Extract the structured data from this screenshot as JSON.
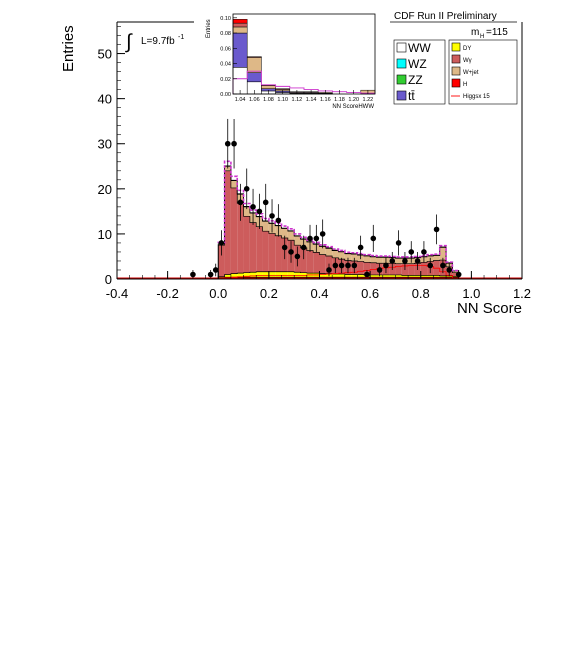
{
  "chart_data": {
    "type": "histogram",
    "xlabel": "NN Score",
    "ylabel": "Entries",
    "xlim": [
      -0.4,
      1.2
    ],
    "ylim": [
      0,
      57
    ],
    "xticks": [
      "-0.4",
      "-0.2",
      "0.0",
      "0.2",
      "0.4",
      "0.6",
      "0.8",
      "1.0",
      "1.2"
    ],
    "yticks": [
      "0",
      "10",
      "20",
      "30",
      "40",
      "50"
    ],
    "luminosity_label": "L=9.7fb",
    "luminosity_exponent": "-1",
    "integral_symbol": "∫",
    "title": "CDF Run II Preliminary",
    "mass_label": "m",
    "mass_subscript": "H",
    "mass_value": "=115",
    "legend": [
      {
        "label": "WW",
        "color": "#ffffff",
        "small": false
      },
      {
        "label": "DY",
        "color": "#ffff00",
        "small": true
      },
      {
        "label": "Wγ",
        "color": "#cd5c5c",
        "small": true
      },
      {
        "label": "WZ",
        "color": "#00ffff",
        "small": false
      },
      {
        "label": "W+jet",
        "color": "#deb887",
        "small": true
      },
      {
        "label": "ZZ",
        "color": "#32cd32",
        "small": false
      },
      {
        "label": "H",
        "color": "#ff0000",
        "small": true
      },
      {
        "label": "tt̄",
        "color": "#6a5acd",
        "small": false
      },
      {
        "label": "Higgsx 15",
        "color": "#ff0000",
        "small": true
      }
    ],
    "bin_edges": [
      0.0,
      0.025,
      0.05,
      0.075,
      0.1,
      0.125,
      0.15,
      0.175,
      0.2,
      0.225,
      0.25,
      0.275,
      0.3,
      0.325,
      0.35,
      0.375,
      0.4,
      0.425,
      0.45,
      0.475,
      0.5,
      0.525,
      0.55,
      0.575,
      0.6,
      0.625,
      0.65,
      0.675,
      0.7,
      0.725,
      0.75,
      0.775,
      0.8,
      0.825,
      0.85,
      0.875,
      0.9,
      0.925,
      0.95
    ],
    "stack": [
      {
        "name": "WW",
        "color": "#ffffff",
        "values": [
          0.3,
          0.4,
          0.4,
          0.4,
          0.4,
          0.4,
          0.4,
          0.4,
          0.4,
          0.4,
          0.4,
          0.4,
          0.4,
          0.4,
          0.4,
          0.4,
          0.4,
          0.4,
          0.4,
          0.4,
          0.4,
          0.4,
          0.4,
          0.4,
          0.4,
          0.4,
          0.4,
          0.4,
          0.4,
          0.4,
          0.4,
          0.4,
          0.4,
          0.4,
          0.4,
          0.4,
          0.4,
          0.4
        ]
      },
      {
        "name": "DY",
        "color": "#ffff00",
        "values": [
          0.2,
          0.6,
          0.8,
          0.9,
          1.0,
          1.1,
          1.2,
          1.2,
          1.2,
          1.2,
          1.2,
          1.2,
          1.1,
          1.0,
          0.9,
          0.9,
          0.8,
          0.8,
          0.7,
          0.7,
          0.6,
          0.6,
          0.6,
          0.5,
          0.5,
          0.5,
          0.5,
          0.5,
          0.5,
          0.4,
          0.4,
          0.4,
          0.4,
          0.4,
          0.4,
          0.3,
          0.3,
          0.2
        ]
      },
      {
        "name": "Wγ",
        "color": "#cd5c5c",
        "values": [
          7.0,
          23.0,
          19.0,
          15.5,
          12.5,
          11.0,
          10.0,
          9.0,
          8.5,
          8.0,
          7.5,
          7.0,
          6.0,
          5.5,
          5.0,
          4.6,
          4.2,
          3.9,
          3.6,
          3.3,
          3.1,
          3.0,
          2.9,
          2.8,
          2.7,
          2.6,
          2.6,
          2.6,
          2.5,
          2.6,
          2.6,
          2.7,
          2.9,
          3.1,
          3.3,
          3.5,
          2.0,
          0.8
        ]
      },
      {
        "name": "W+jet",
        "color": "#deb887",
        "values": [
          0.3,
          1.0,
          1.6,
          2.0,
          2.1,
          2.1,
          2.2,
          2.2,
          2.2,
          2.2,
          2.1,
          2.0,
          2.0,
          1.9,
          1.9,
          1.8,
          1.8,
          1.7,
          1.6,
          1.6,
          1.5,
          1.5,
          1.4,
          1.4,
          1.3,
          1.3,
          1.3,
          1.2,
          1.2,
          1.2,
          1.2,
          1.2,
          1.2,
          1.2,
          1.1,
          2.8,
          0.8,
          0.4
        ]
      },
      {
        "name": "H",
        "color": "#ff0000",
        "values": [
          0.0,
          0.1,
          0.1,
          0.1,
          0.1,
          0.1,
          0.1,
          0.1,
          0.1,
          0.1,
          0.1,
          0.1,
          0.1,
          0.1,
          0.1,
          0.1,
          0.1,
          0.1,
          0.1,
          0.1,
          0.1,
          0.1,
          0.1,
          0.1,
          0.1,
          0.1,
          0.1,
          0.1,
          0.1,
          0.1,
          0.1,
          0.1,
          0.1,
          0.1,
          0.1,
          0.1,
          0.1,
          0.0
        ]
      }
    ],
    "higgs_x15": [
      0.1,
      0.3,
      0.4,
      0.5,
      0.6,
      0.7,
      0.8,
      0.8,
      0.8,
      0.8,
      0.8,
      0.8,
      0.8,
      0.8,
      0.9,
      0.9,
      1.0,
      1.1,
      1.2,
      1.3,
      1.4,
      1.5,
      1.7,
      1.9,
      2.1,
      2.3,
      2.5,
      2.6,
      2.8,
      2.9,
      3.0,
      3.0,
      3.0,
      2.8,
      2.4,
      1.6,
      0.8,
      0.2
    ],
    "data_points": [
      {
        "x": -0.1,
        "y": 1,
        "err": 1.0
      },
      {
        "x": -0.03,
        "y": 1,
        "err": 1.0
      },
      {
        "x": -0.01,
        "y": 2,
        "err": 1.4
      },
      {
        "x": 0.0125,
        "y": 8,
        "err": 2.8
      },
      {
        "x": 0.0375,
        "y": 30,
        "err": 5.5
      },
      {
        "x": 0.0625,
        "y": 30,
        "err": 5.5
      },
      {
        "x": 0.0875,
        "y": 17,
        "err": 4.1
      },
      {
        "x": 0.1125,
        "y": 20,
        "err": 4.5
      },
      {
        "x": 0.1375,
        "y": 16,
        "err": 4.0
      },
      {
        "x": 0.1625,
        "y": 15,
        "err": 3.9
      },
      {
        "x": 0.1875,
        "y": 17,
        "err": 4.1
      },
      {
        "x": 0.2125,
        "y": 14,
        "err": 3.7
      },
      {
        "x": 0.2375,
        "y": 13,
        "err": 3.6
      },
      {
        "x": 0.2625,
        "y": 7,
        "err": 2.6
      },
      {
        "x": 0.2875,
        "y": 6,
        "err": 2.4
      },
      {
        "x": 0.3125,
        "y": 5,
        "err": 2.2
      },
      {
        "x": 0.3375,
        "y": 7,
        "err": 2.6
      },
      {
        "x": 0.3625,
        "y": 9,
        "err": 3.0
      },
      {
        "x": 0.3875,
        "y": 9,
        "err": 3.0
      },
      {
        "x": 0.4125,
        "y": 10,
        "err": 3.2
      },
      {
        "x": 0.4375,
        "y": 2,
        "err": 1.4
      },
      {
        "x": 0.4625,
        "y": 3,
        "err": 1.7
      },
      {
        "x": 0.4875,
        "y": 3,
        "err": 1.7
      },
      {
        "x": 0.5125,
        "y": 3,
        "err": 1.7
      },
      {
        "x": 0.5375,
        "y": 3,
        "err": 1.7
      },
      {
        "x": 0.5625,
        "y": 7,
        "err": 2.6
      },
      {
        "x": 0.5875,
        "y": 1,
        "err": 1.0
      },
      {
        "x": 0.6125,
        "y": 9,
        "err": 3.0
      },
      {
        "x": 0.6375,
        "y": 2,
        "err": 1.4
      },
      {
        "x": 0.6625,
        "y": 3,
        "err": 1.7
      },
      {
        "x": 0.6875,
        "y": 4,
        "err": 2.0
      },
      {
        "x": 0.7125,
        "y": 8,
        "err": 2.8
      },
      {
        "x": 0.7375,
        "y": 4,
        "err": 2.0
      },
      {
        "x": 0.7625,
        "y": 6,
        "err": 2.4
      },
      {
        "x": 0.7875,
        "y": 4,
        "err": 2.0
      },
      {
        "x": 0.8125,
        "y": 6,
        "err": 2.4
      },
      {
        "x": 0.8375,
        "y": 3,
        "err": 1.7
      },
      {
        "x": 0.8625,
        "y": 11,
        "err": 3.3
      },
      {
        "x": 0.8875,
        "y": 3,
        "err": 1.7
      },
      {
        "x": 0.9125,
        "y": 2,
        "err": 1.4
      },
      {
        "x": 0.95,
        "y": 1,
        "err": 1.0
      }
    ],
    "inset": {
      "xlabel": "NN ScoreHWW",
      "ylabel": "Entries",
      "xticks": [
        "1.04",
        "1.06",
        "1.08",
        "1.10",
        "1.12",
        "1.14",
        "1.16",
        "1.18",
        "1.20",
        "1.22"
      ],
      "yticks": [
        "0.00",
        "0.02",
        "0.04",
        "0.06",
        "0.08",
        "0.10"
      ],
      "xlim": [
        1.03,
        1.23
      ],
      "ylim": [
        0,
        0.105
      ],
      "bin_edges": [
        1.03,
        1.05,
        1.07,
        1.09,
        1.11,
        1.13,
        1.15,
        1.17,
        1.19,
        1.21,
        1.23
      ],
      "stack": [
        {
          "name": "WW",
          "color": "#ffffff",
          "values": [
            0.035,
            0.016,
            0.004,
            0.002,
            0.001,
            0.001,
            0.0,
            0.0,
            0.0,
            0.0
          ]
        },
        {
          "name": "tt̄",
          "color": "#6a5acd",
          "values": [
            0.045,
            0.012,
            0.003,
            0.002,
            0.001,
            0.001,
            0.001,
            0.0,
            0.0,
            0.0
          ]
        },
        {
          "name": "W+jet",
          "color": "#deb887",
          "values": [
            0.008,
            0.02,
            0.004,
            0.002,
            0.001,
            0.001,
            0.001,
            0.0,
            0.0,
            0.005
          ]
        },
        {
          "name": "Wγ",
          "color": "#cd5c5c",
          "values": [
            0.005,
            0.001,
            0.001,
            0.001,
            0.0,
            0.0,
            0.0,
            0.0,
            0.0,
            0.0
          ]
        },
        {
          "name": "H",
          "color": "#ff0000",
          "values": [
            0.005,
            0.0,
            0.0,
            0.0,
            0.0,
            0.0,
            0.0,
            0.0,
            0.0,
            0.0
          ]
        }
      ],
      "higgs_x15": [
        0.02,
        0.03,
        0.012,
        0.01,
        0.008,
        0.006,
        0.004,
        0.003,
        0.002,
        0.001
      ]
    }
  }
}
